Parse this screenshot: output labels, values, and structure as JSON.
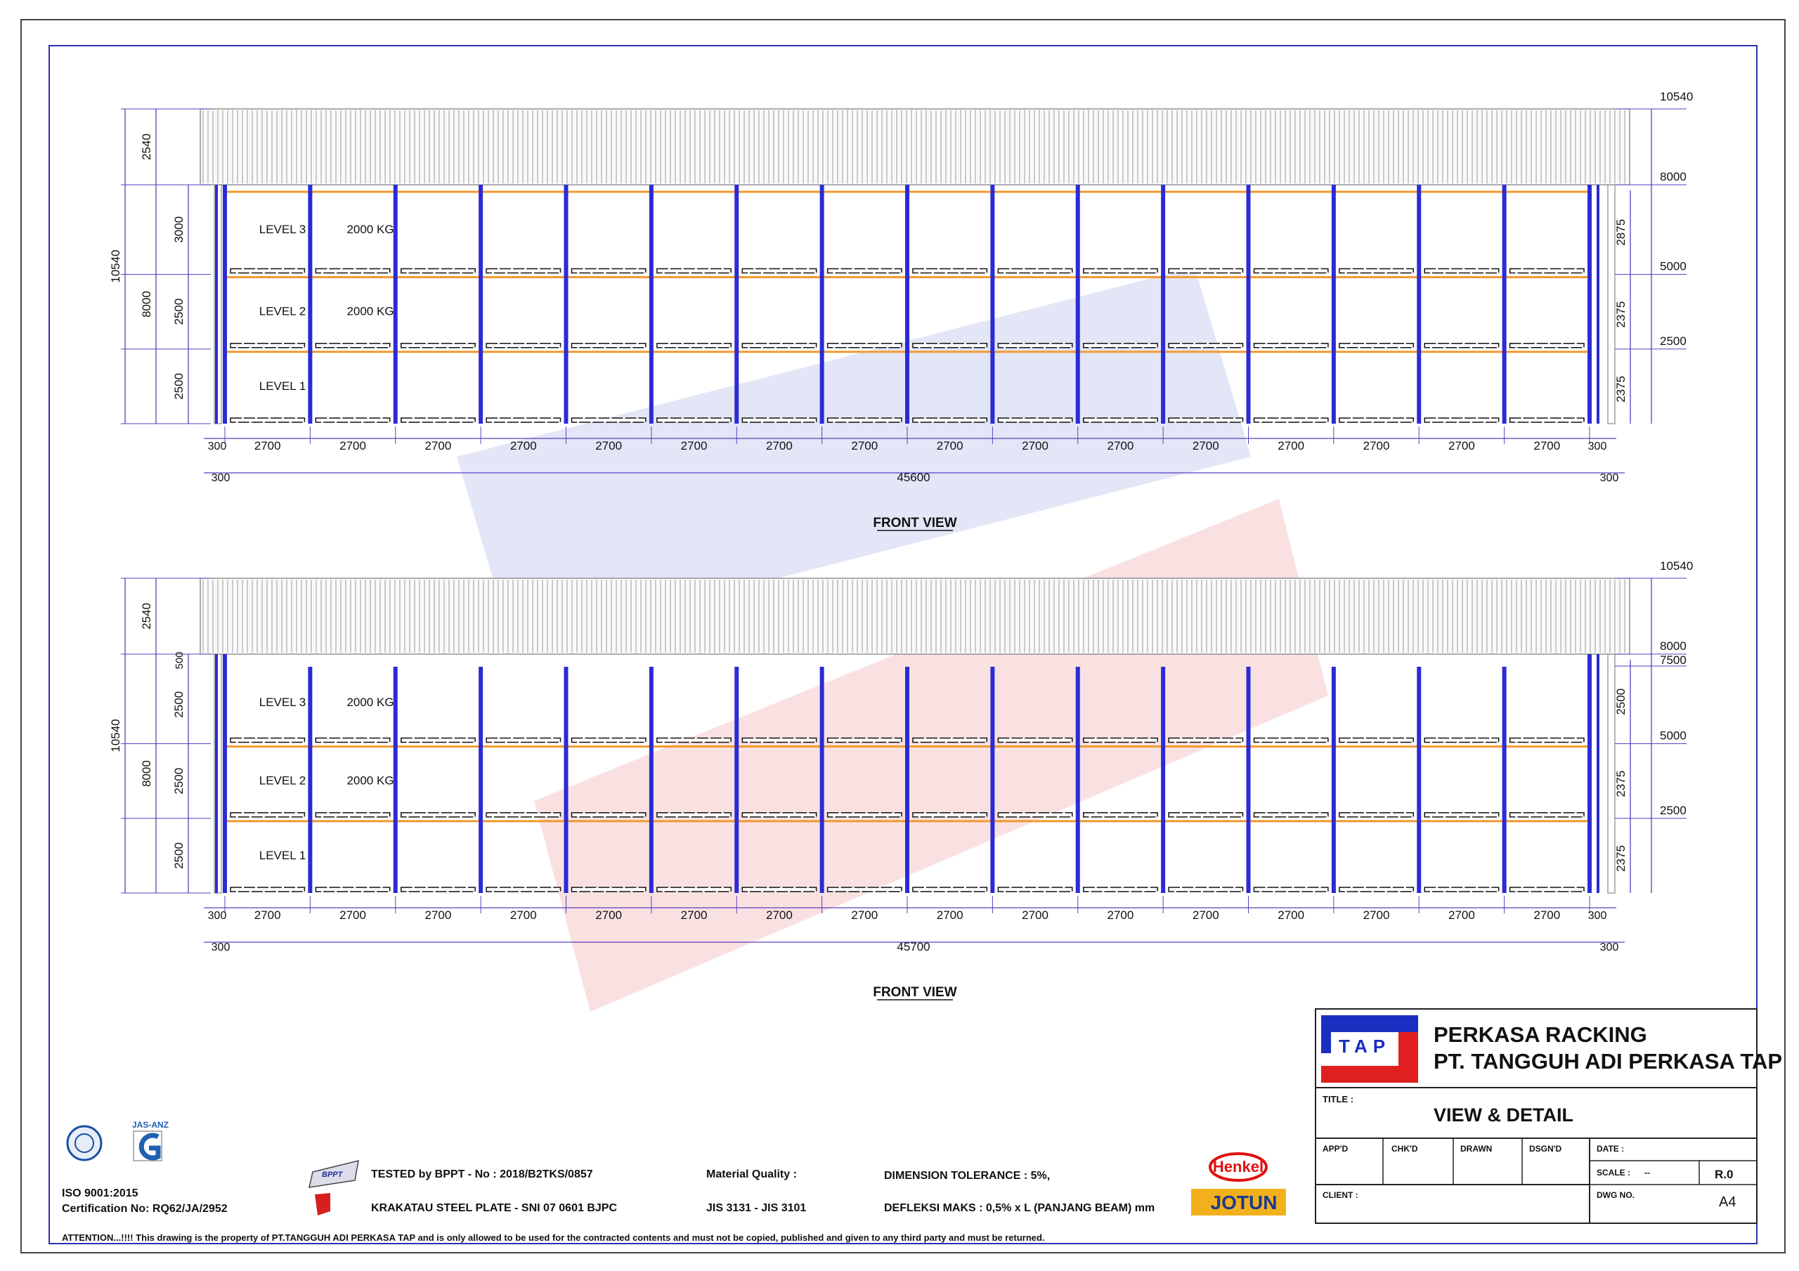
{
  "views": [
    {
      "title": "FRONT VIEW",
      "left_heights": {
        "total": "10540",
        "rack": "8000",
        "top": "2540",
        "levels": [
          "3000",
          "2500",
          "2500"
        ],
        "top_offset": null
      },
      "right_labels": [
        "10540",
        "8000",
        "5000",
        "2500"
      ],
      "right_extra": null,
      "right_clearances": [
        "2875",
        "2375",
        "2375"
      ],
      "bays": [
        "2700",
        "2700",
        "2700",
        "2700",
        "2700",
        "2700",
        "2700",
        "2700",
        "2700",
        "2700",
        "2700",
        "2700",
        "2700",
        "2700",
        "2700",
        "2700"
      ],
      "end_gap": "300",
      "total_length": "45600",
      "level_labels": [
        "LEVEL 3",
        "LEVEL 2",
        "LEVEL 1"
      ],
      "loads": [
        "2000 KG",
        "2000 KG",
        ""
      ]
    },
    {
      "title": "FRONT VIEW",
      "left_heights": {
        "total": "10540",
        "rack": "8000",
        "top": "2540",
        "levels": [
          "2500",
          "2500",
          "2500"
        ],
        "top_offset": "500"
      },
      "right_labels": [
        "10540",
        "8000",
        "5000",
        "2500"
      ],
      "right_extra": "7500",
      "right_clearances": [
        "2500",
        "2375",
        "2375"
      ],
      "bays": [
        "2700",
        "2700",
        "2700",
        "2700",
        "2700",
        "2700",
        "2700",
        "2700",
        "2700",
        "2700",
        "2700",
        "2700",
        "2700",
        "2700",
        "2700",
        "2700"
      ],
      "end_gap": "300",
      "total_length": "45700",
      "level_labels": [
        "LEVEL 3",
        "LEVEL 2",
        "LEVEL 1"
      ],
      "loads": [
        "2000 KG",
        "2000 KG",
        ""
      ]
    }
  ],
  "title_block": {
    "logo_text": "TAP",
    "company_line1": "PERKASA RACKING",
    "company_line2": "PT. TANGGUH ADI PERKASA TAP",
    "title_label": "TITLE :",
    "title_value": "VIEW & DETAIL",
    "fields": [
      "APP'D",
      "CHK'D",
      "DRAWN",
      "DSGN'D"
    ],
    "date_label": "DATE :",
    "scale_label": "SCALE :",
    "scale_value": "--",
    "revision": "R.0",
    "client_label": "CLIENT :",
    "dwg_label": "DWG NO.",
    "dwg_value": "A4"
  },
  "footer": {
    "iso_line1": "ISO 9001:2015",
    "iso_line2": "Certification No: RQ62/JA/2952",
    "jas_anz": "JAS-ANZ",
    "bppt_logo": "BPPT",
    "tested": "TESTED by BPPT - No : 2018/B2TKS/0857",
    "steel": "KRAKATAU STEEL PLATE  - SNI 07 0601 BJPC",
    "material_label": "Material Quality :",
    "material_value": "JIS 3131 - JIS 3101",
    "tolerance": "DIMENSION TOLERANCE : 5%,",
    "deflection": "DEFLEKSI MAKS :  0,5% x L (PANJANG BEAM) mm",
    "henkel": "Henkel",
    "jotun": "JOTUN",
    "attention": "ATTENTION...!!!!  This drawing is the property of PT.TANGGUH ADI PERKASA TAP and is only allowed to be used for the contracted contents and must not be copied, published and given to any third party and must be returned."
  },
  "colors": {
    "upright": "#2b2bd6",
    "beam": "#f39a2e",
    "dim": "#5a3fbf",
    "watermark_blue": "#dfe3f6",
    "watermark_red": "#f8dede"
  }
}
